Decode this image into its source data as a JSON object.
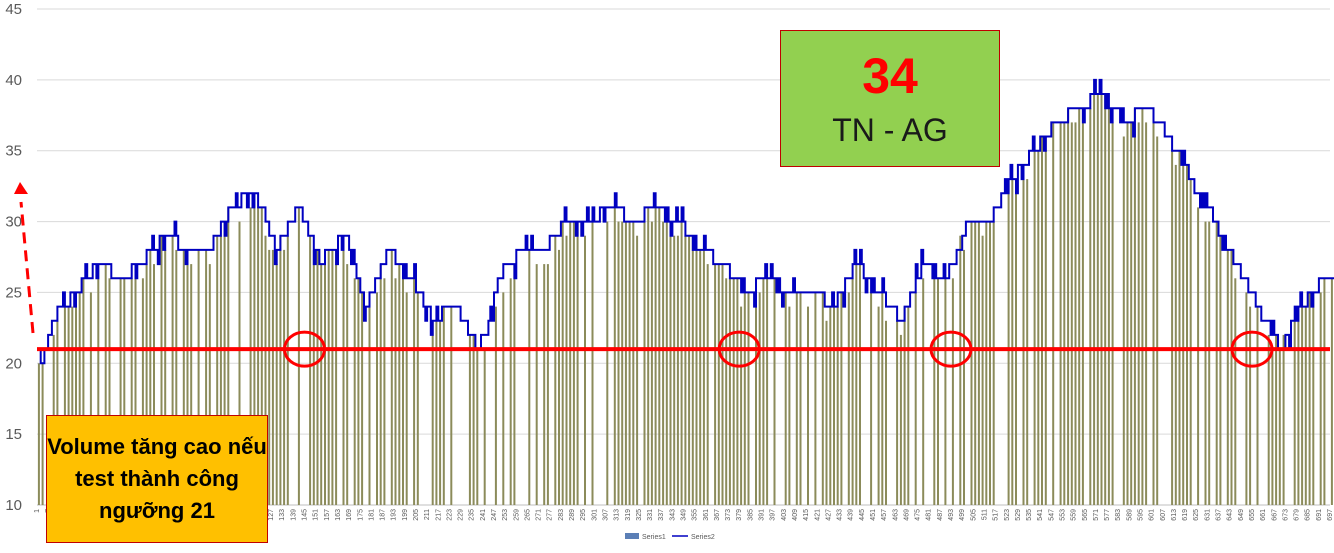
{
  "chart_data": {
    "type": "bar",
    "title": "",
    "xlabel": "",
    "ylabel": "",
    "ylim": [
      10,
      45
    ],
    "yticks": [
      10,
      15,
      20,
      25,
      30,
      35,
      40,
      45
    ],
    "grid": true,
    "legend_position": "bottom",
    "x_tick_start": 1,
    "x_tick_step": 6,
    "x_tick_end": 697,
    "series": [
      {
        "name": "Series1",
        "kind": "bar",
        "color": "#8b8b5a"
      },
      {
        "name": "Series2",
        "kind": "line",
        "color": "#0000c0",
        "anchors": [
          [
            1,
            21
          ],
          [
            3,
            20
          ],
          [
            10,
            23
          ],
          [
            22,
            25
          ],
          [
            34,
            27
          ],
          [
            46,
            26
          ],
          [
            58,
            27
          ],
          [
            70,
            29
          ],
          [
            82,
            28
          ],
          [
            94,
            28
          ],
          [
            106,
            31
          ],
          [
            118,
            32
          ],
          [
            130,
            28
          ],
          [
            142,
            31
          ],
          [
            154,
            27
          ],
          [
            166,
            29
          ],
          [
            178,
            24
          ],
          [
            190,
            28
          ],
          [
            202,
            26
          ],
          [
            214,
            23
          ],
          [
            226,
            24
          ],
          [
            238,
            21
          ],
          [
            244,
            23
          ],
          [
            250,
            26
          ],
          [
            262,
            28
          ],
          [
            274,
            28
          ],
          [
            286,
            30
          ],
          [
            298,
            30
          ],
          [
            310,
            31
          ],
          [
            322,
            30
          ],
          [
            334,
            31
          ],
          [
            346,
            30
          ],
          [
            358,
            28
          ],
          [
            370,
            27
          ],
          [
            382,
            25
          ],
          [
            394,
            26
          ],
          [
            406,
            25
          ],
          [
            418,
            25
          ],
          [
            430,
            24
          ],
          [
            442,
            27
          ],
          [
            454,
            25
          ],
          [
            466,
            23
          ],
          [
            478,
            27
          ],
          [
            490,
            26
          ],
          [
            502,
            30
          ],
          [
            514,
            30
          ],
          [
            526,
            33
          ],
          [
            538,
            35
          ],
          [
            550,
            37
          ],
          [
            562,
            38
          ],
          [
            574,
            39
          ],
          [
            586,
            37
          ],
          [
            598,
            38
          ],
          [
            610,
            36
          ],
          [
            622,
            33
          ],
          [
            634,
            30
          ],
          [
            646,
            27
          ],
          [
            658,
            24
          ],
          [
            670,
            21
          ],
          [
            682,
            24
          ],
          [
            694,
            26
          ],
          [
            706,
            25
          ],
          [
            718,
            24
          ],
          [
            730,
            23
          ],
          [
            742,
            22
          ],
          [
            754,
            24
          ],
          [
            766,
            26
          ],
          [
            778,
            27
          ],
          [
            790,
            28
          ],
          [
            802,
            30
          ],
          [
            814,
            31
          ],
          [
            826,
            28
          ],
          [
            838,
            26
          ],
          [
            850,
            25
          ],
          [
            862,
            24
          ],
          [
            874,
            23
          ],
          [
            886,
            23
          ],
          [
            898,
            24
          ],
          [
            910,
            22
          ],
          [
            916,
            21
          ],
          [
            922,
            23
          ],
          [
            934,
            26
          ],
          [
            946,
            25
          ],
          [
            958,
            26
          ],
          [
            970,
            26
          ],
          [
            982,
            24
          ],
          [
            994,
            24
          ],
          [
            1006,
            25
          ],
          [
            1018,
            24
          ],
          [
            1030,
            26
          ],
          [
            1042,
            24
          ],
          [
            1054,
            24
          ],
          [
            1066,
            26
          ],
          [
            1078,
            24
          ],
          [
            1090,
            23
          ],
          [
            1102,
            24
          ],
          [
            1114,
            25
          ],
          [
            1126,
            25
          ],
          [
            1138,
            26
          ],
          [
            1150,
            28
          ],
          [
            1162,
            30
          ],
          [
            1174,
            29
          ],
          [
            1186,
            26
          ],
          [
            1198,
            24
          ],
          [
            1210,
            22
          ],
          [
            1216,
            21
          ],
          [
            1222,
            22
          ],
          [
            1234,
            24
          ],
          [
            1246,
            23
          ],
          [
            1258,
            22
          ],
          [
            1270,
            24
          ],
          [
            1282,
            22
          ],
          [
            1294,
            22
          ],
          [
            1300,
            23
          ],
          [
            1310,
            23
          ]
        ]
      }
    ],
    "threshold": {
      "value": 21,
      "color": "#ff0000"
    },
    "test_circles": [
      145,
      379,
      493,
      655
    ],
    "arrow_color": "#ff0000"
  },
  "badge": {
    "number": "34",
    "label": "TN - AG"
  },
  "note": {
    "text": "Volume tăng cao nếu test thành công ngưỡng 21"
  }
}
